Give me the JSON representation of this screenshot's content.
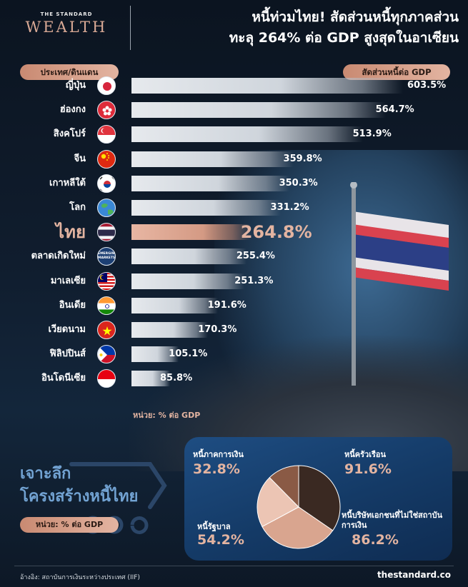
{
  "brand": {
    "top": "THE STANDARD",
    "name": "WEALTH"
  },
  "headline": {
    "line1": "หนี้ท่วมไทย! สัดส่วนหนี้ทุกภาคส่วน",
    "line2": "ทะลุ 264% ต่อ GDP สูงสุดในอาเซียน"
  },
  "columns": {
    "left": "ประเทศ/ดินแดน",
    "right": "สัดส่วนหนี้ต่อ GDP"
  },
  "chart_data": [
    {
      "type": "bar",
      "orientation": "horizontal",
      "categories": [
        "ญี่ปุ่น",
        "ฮ่องกง",
        "สิงคโปร์",
        "จีน",
        "เกาหลีใต้",
        "โลก",
        "ไทย",
        "ตลาดเกิดใหม่",
        "มาเลเซีย",
        "อินเดีย",
        "เวียดนาม",
        "ฟิลิปปินส์",
        "อินโดนีเซีย"
      ],
      "values": [
        603.5,
        564.7,
        513.9,
        359.8,
        350.3,
        331.2,
        264.8,
        255.4,
        251.3,
        191.6,
        170.3,
        105.1,
        85.8
      ],
      "labels": [
        "603.5%",
        "564.7%",
        "513.9%",
        "359.8%",
        "350.3%",
        "331.2%",
        "264.8%",
        "255.4%",
        "251.3%",
        "191.6%",
        "170.3%",
        "105.1%",
        "85.8%"
      ],
      "highlight": "ไทย",
      "unit_label": "หน่วย: % ต่อ GDP",
      "colors": {
        "bar": "#d9dee4",
        "highlight": "#e0ac98"
      }
    },
    {
      "type": "pie",
      "title": "เจาะลึก โครงสร้างหนี้ไทย",
      "unit_label": "หน่วย: % ต่อ GDP",
      "slices": [
        {
          "name": "หนี้ครัวเรือน",
          "value": 91.6,
          "label": "91.6%",
          "color": "#3a2922"
        },
        {
          "name": "หนี้บริษัทเอกชนที่ไม่ใช่สถาบันการเงิน",
          "value": 86.2,
          "label": "86.2%",
          "color": "#d9a58f"
        },
        {
          "name": "หนี้รัฐบาล",
          "value": 54.2,
          "label": "54.2%",
          "color": "#ecc5b4"
        },
        {
          "name": "หนี้ภาคการเงิน",
          "value": 32.8,
          "label": "32.8%",
          "color": "#8a5a45"
        }
      ]
    }
  ],
  "deep_dive": {
    "line1": "เจาะลึก",
    "line2": "โครงสร้างหนี้ไทย",
    "unit": "หน่วย: % ต่อ GDP"
  },
  "footer": {
    "source": "อ้างอิง: สถาบันการเงินระหว่างประเทศ (IIF)",
    "site": "thestandard.co"
  },
  "flags": [
    "japan",
    "hong-kong",
    "singapore",
    "china",
    "south-korea",
    "globe",
    "thailand",
    "emerging-markets",
    "malaysia",
    "india",
    "vietnam",
    "philippines",
    "indonesia"
  ],
  "emerging_badge": "EMERGING MARKETS"
}
